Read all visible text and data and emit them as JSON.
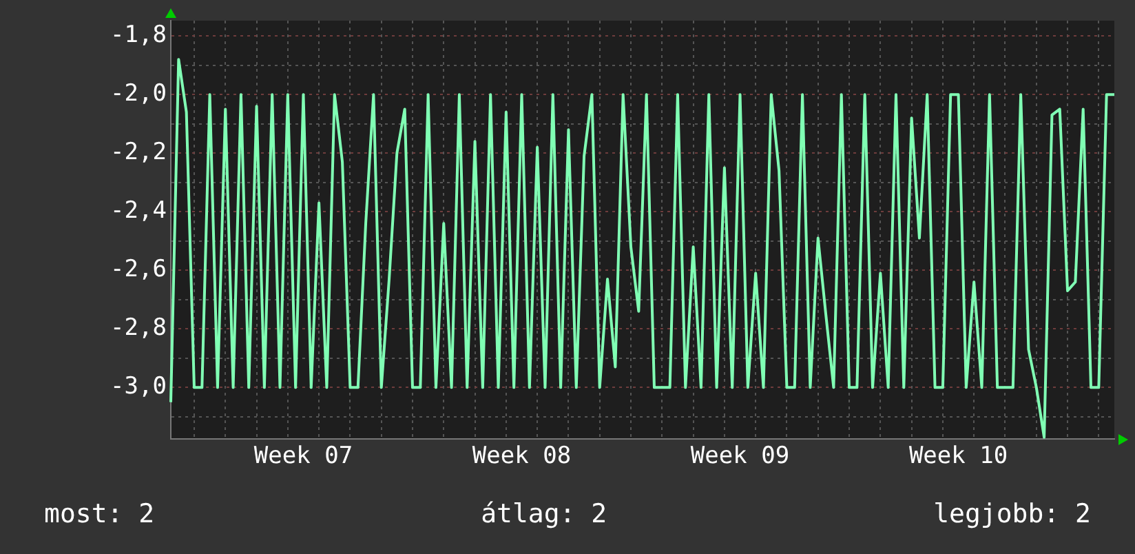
{
  "chart_data": {
    "type": "line",
    "grid": true,
    "legend": false,
    "marker": "none",
    "line_style": "solid",
    "categories": [
      null,
      null,
      null,
      null,
      null,
      null,
      null,
      null,
      null,
      null,
      null,
      null,
      null,
      null,
      null,
      null,
      null,
      "Week 07",
      null,
      null,
      null,
      null,
      null,
      null,
      null,
      null,
      null,
      null,
      null,
      null,
      null,
      null,
      null,
      null,
      null,
      null,
      null,
      null,
      null,
      null,
      null,
      null,
      null,
      null,
      null,
      "Week 08",
      null,
      null,
      null,
      null,
      null,
      null,
      null,
      null,
      null,
      null,
      null,
      null,
      null,
      null,
      null,
      null,
      null,
      null,
      null,
      null,
      null,
      null,
      null,
      null,
      null,
      null,
      null,
      "Week 09",
      null,
      null,
      null,
      null,
      null,
      null,
      null,
      null,
      null,
      null,
      null,
      null,
      null,
      null,
      null,
      null,
      null,
      null,
      null,
      null,
      null,
      null,
      null,
      null,
      null,
      null,
      null,
      "Week 10",
      null,
      null,
      null,
      null,
      null,
      null,
      null,
      null,
      null,
      null,
      null,
      null,
      null,
      null,
      null,
      null,
      null,
      null,
      null,
      null
    ],
    "ylim": [
      -3.176,
      -1.748
    ],
    "yticks": [
      {
        "value": -3.1,
        "label": null
      },
      {
        "value": -3.0,
        "label": "-3,0"
      },
      {
        "value": -2.9,
        "label": null
      },
      {
        "value": -2.8,
        "label": "-2,8"
      },
      {
        "value": -2.7,
        "label": null
      },
      {
        "value": -2.6,
        "label": "-2,6"
      },
      {
        "value": -2.5,
        "label": null
      },
      {
        "value": -2.4,
        "label": "-2,4"
      },
      {
        "value": -2.3,
        "label": null
      },
      {
        "value": -2.2,
        "label": "-2,2"
      },
      {
        "value": -2.1,
        "label": null
      },
      {
        "value": -2.0,
        "label": "-2,0"
      },
      {
        "value": -1.9,
        "label": null
      },
      {
        "value": -1.8,
        "label": "-1,8"
      }
    ],
    "annotations": [
      "most: 2",
      "átlag: 2",
      "legjobb: 2"
    ],
    "series": [
      {
        "color": "#80ffb4",
        "values": [
          -3.05,
          -1.88,
          -2.06,
          -3.0,
          -3.0,
          -2.0,
          -3.0,
          -2.05,
          -3.0,
          -2.0,
          -3.0,
          -2.04,
          -3.0,
          -2.0,
          -3.0,
          -2.0,
          -3.0,
          -2.0,
          -3.0,
          -2.37,
          -3.0,
          -2.0,
          -2.23,
          -3.0,
          -3.0,
          -2.44,
          -2.0,
          -3.0,
          -2.63,
          -2.2,
          -2.05,
          -3.0,
          -3.0,
          -2.0,
          -3.0,
          -2.44,
          -3.0,
          -2.0,
          -3.0,
          -2.16,
          -3.0,
          -2.0,
          -3.0,
          -2.06,
          -3.0,
          -2.0,
          -3.0,
          -2.18,
          -3.0,
          -2.0,
          -3.0,
          -2.12,
          -3.0,
          -2.21,
          -2.0,
          -3.0,
          -2.63,
          -2.93,
          -2.0,
          -2.52,
          -2.74,
          -2.0,
          -3.0,
          -3.0,
          -3.0,
          -2.0,
          -3.0,
          -2.52,
          -3.0,
          -2.0,
          -3.0,
          -2.25,
          -3.0,
          -2.0,
          -3.0,
          -2.61,
          -3.0,
          -2.0,
          -2.26,
          -3.0,
          -3.0,
          -2.0,
          -3.0,
          -2.49,
          -2.75,
          -3.0,
          -2.0,
          -3.0,
          -3.0,
          -2.0,
          -3.0,
          -2.61,
          -3.0,
          -2.0,
          -3.0,
          -2.08,
          -2.49,
          -2.0,
          -3.0,
          -3.0,
          -2.0,
          -2.0,
          -3.0,
          -2.64,
          -3.0,
          -2.0,
          -3.0,
          -3.0,
          -3.0,
          -2.0,
          -2.87,
          -3.0,
          -3.17,
          -2.07,
          -2.05,
          -2.67,
          -2.64,
          -2.05,
          -3.0,
          -3.0,
          -2.0,
          -2.0
        ]
      }
    ]
  }
}
